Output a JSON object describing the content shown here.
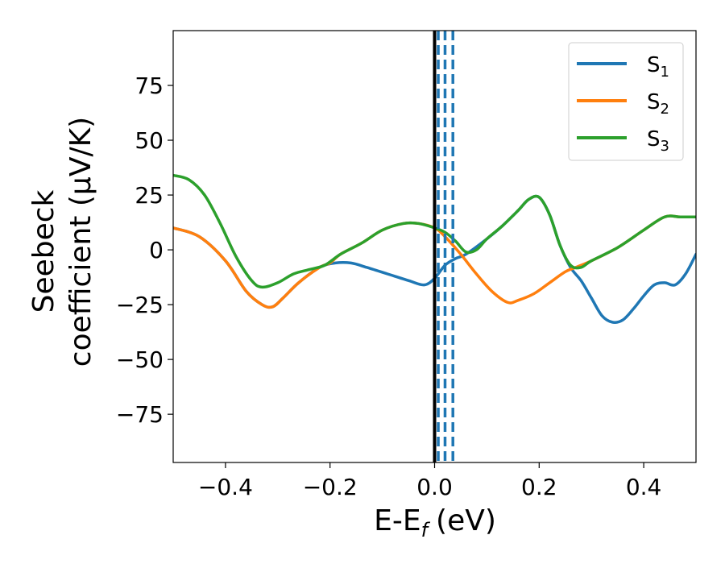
{
  "chart_data": {
    "type": "line",
    "xlabel": "E-E",
    "xlabel_subscript": "f",
    "xlabel_unit": "(eV)",
    "ylabel_line1": "Seebeck",
    "ylabel_line2": "coefficient  (μV/K)",
    "xlim": [
      -0.5,
      0.5
    ],
    "ylim": [
      -97,
      100
    ],
    "xticks": [
      -0.4,
      -0.2,
      0.0,
      0.2,
      0.4
    ],
    "xtick_labels": [
      "−0.4",
      "−0.2",
      "0.0",
      "0.2",
      "0.4"
    ],
    "yticks": [
      -75,
      -50,
      -25,
      0,
      25,
      50,
      75
    ],
    "ytick_labels": [
      "−75",
      "−50",
      "−25",
      "0",
      "25",
      "50",
      "75"
    ],
    "grid": false,
    "legend_position": "top-right",
    "fermi_line_x": 0.0,
    "dashed_lines_x": [
      0.007,
      0.02,
      0.035
    ],
    "colors": {
      "s1": "#1f77b4",
      "s2": "#ff7f0e",
      "s3": "#2ca02c",
      "fermi": "#000000"
    },
    "series": [
      {
        "name": "S",
        "subscript": "1",
        "color": "#1f77b4",
        "points": [
          [
            -0.5,
            10
          ],
          [
            -0.45,
            6
          ],
          [
            -0.4,
            -5
          ],
          [
            -0.36,
            -19
          ],
          [
            -0.33,
            -25
          ],
          [
            -0.31,
            -26
          ],
          [
            -0.29,
            -22
          ],
          [
            -0.26,
            -15
          ],
          [
            -0.22,
            -8
          ],
          [
            -0.19,
            -6
          ],
          [
            -0.16,
            -6
          ],
          [
            -0.13,
            -8
          ],
          [
            -0.09,
            -11
          ],
          [
            -0.05,
            -14
          ],
          [
            -0.02,
            -16
          ],
          [
            0.0,
            -13
          ],
          [
            0.02,
            -7
          ],
          [
            0.04,
            -4
          ],
          [
            0.06,
            -2
          ],
          [
            0.1,
            5
          ],
          [
            0.13,
            11
          ],
          [
            0.16,
            18
          ],
          [
            0.18,
            23
          ],
          [
            0.2,
            24
          ],
          [
            0.22,
            16
          ],
          [
            0.24,
            2
          ],
          [
            0.26,
            -8
          ],
          [
            0.28,
            -14
          ],
          [
            0.3,
            -22
          ],
          [
            0.32,
            -30
          ],
          [
            0.34,
            -33
          ],
          [
            0.36,
            -32
          ],
          [
            0.38,
            -27
          ],
          [
            0.4,
            -21
          ],
          [
            0.42,
            -16
          ],
          [
            0.44,
            -15
          ],
          [
            0.46,
            -16
          ],
          [
            0.48,
            -11
          ],
          [
            0.5,
            -2
          ]
        ]
      },
      {
        "name": "S",
        "subscript": "2",
        "color": "#ff7f0e",
        "points": [
          [
            -0.5,
            10
          ],
          [
            -0.45,
            6
          ],
          [
            -0.4,
            -5
          ],
          [
            -0.36,
            -19
          ],
          [
            -0.33,
            -25
          ],
          [
            -0.31,
            -26
          ],
          [
            -0.29,
            -22
          ],
          [
            -0.26,
            -15
          ],
          [
            -0.22,
            -8
          ],
          [
            -0.2,
            -6
          ],
          [
            -0.18,
            -2
          ],
          [
            -0.14,
            3
          ],
          [
            -0.1,
            9
          ],
          [
            -0.06,
            12
          ],
          [
            -0.03,
            12
          ],
          [
            0.0,
            10
          ],
          [
            0.02,
            6
          ],
          [
            0.05,
            -2
          ],
          [
            0.08,
            -11
          ],
          [
            0.11,
            -19
          ],
          [
            0.14,
            -24
          ],
          [
            0.16,
            -23
          ],
          [
            0.19,
            -20
          ],
          [
            0.22,
            -15
          ],
          [
            0.25,
            -10
          ],
          [
            0.27,
            -8
          ],
          [
            0.3,
            -5
          ],
          [
            0.35,
            1
          ],
          [
            0.4,
            9
          ],
          [
            0.44,
            15
          ],
          [
            0.47,
            15
          ],
          [
            0.5,
            15
          ]
        ]
      },
      {
        "name": "S",
        "subscript": "3",
        "color": "#2ca02c",
        "points": [
          [
            -0.5,
            34
          ],
          [
            -0.47,
            32
          ],
          [
            -0.44,
            25
          ],
          [
            -0.41,
            12
          ],
          [
            -0.38,
            -3
          ],
          [
            -0.35,
            -14
          ],
          [
            -0.33,
            -17
          ],
          [
            -0.3,
            -15
          ],
          [
            -0.27,
            -11
          ],
          [
            -0.24,
            -9
          ],
          [
            -0.21,
            -7
          ],
          [
            -0.18,
            -2
          ],
          [
            -0.14,
            3
          ],
          [
            -0.1,
            9
          ],
          [
            -0.06,
            12
          ],
          [
            -0.03,
            12
          ],
          [
            0.0,
            10
          ],
          [
            0.02,
            8
          ],
          [
            0.04,
            4
          ],
          [
            0.06,
            -1
          ],
          [
            0.08,
            0
          ],
          [
            0.1,
            5
          ],
          [
            0.13,
            11
          ],
          [
            0.16,
            18
          ],
          [
            0.18,
            23
          ],
          [
            0.2,
            24
          ],
          [
            0.22,
            16
          ],
          [
            0.24,
            2
          ],
          [
            0.26,
            -7
          ],
          [
            0.28,
            -8
          ],
          [
            0.3,
            -5
          ],
          [
            0.35,
            1
          ],
          [
            0.4,
            9
          ],
          [
            0.44,
            15
          ],
          [
            0.47,
            15
          ],
          [
            0.5,
            15
          ]
        ]
      }
    ]
  }
}
